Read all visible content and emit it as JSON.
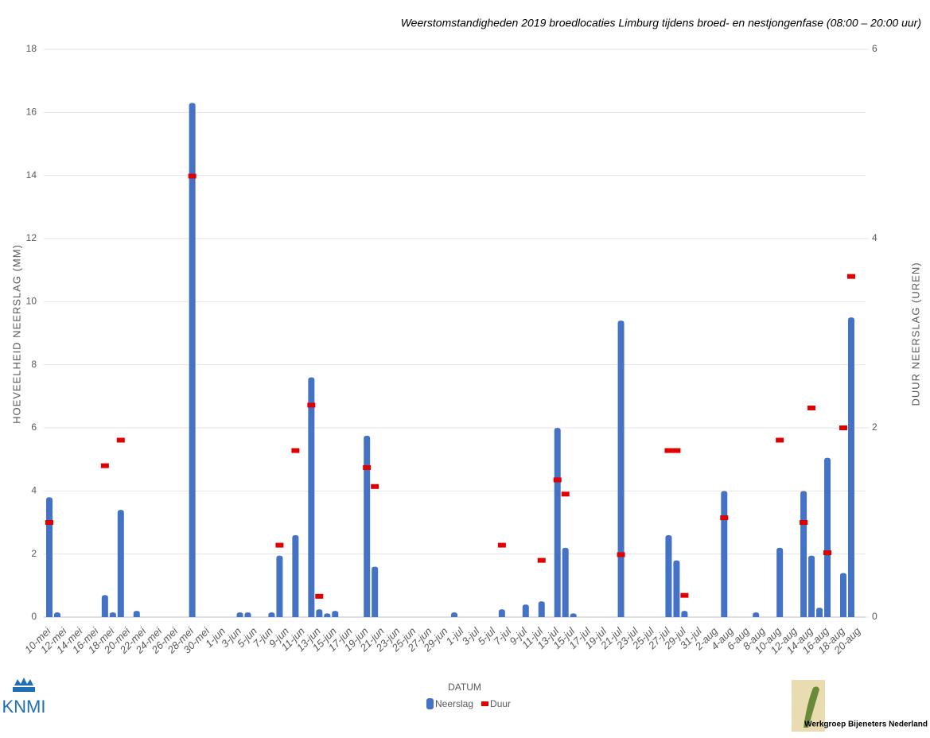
{
  "chart_data": {
    "type": "bar",
    "title": "Weerstomstandigheden 2019 broedlocaties Limburg tijdens broed- en nestjongenfase (08:00 – 20:00 uur)",
    "x_label": "DATUM",
    "y_label": "HOEVEELHEID NEERSLAG (MM)",
    "y2_label": "DUUR NEERSLAG (UREN)",
    "categories": [
      "10-mei",
      null,
      "12-mei",
      null,
      "14-mei",
      null,
      "16-mei",
      null,
      "18-mei",
      null,
      "20-mei",
      null,
      "22-mei",
      null,
      "24-mei",
      null,
      "26-mei",
      null,
      "28-mei",
      null,
      "30-mei",
      null,
      "1-jun",
      null,
      "3-jun",
      null,
      "5-jun",
      null,
      "7-jun",
      null,
      "9-jun",
      null,
      "11-jun",
      null,
      "13-jun",
      null,
      "15-jun",
      null,
      "17-jun",
      null,
      "19-jun",
      null,
      "21-jun",
      null,
      "23-jun",
      null,
      "25-jun",
      null,
      "27-jun",
      null,
      "29-jun",
      null,
      "1-jul",
      null,
      "3-jul",
      null,
      "5-jul",
      null,
      "7-jul",
      null,
      "9-jul",
      null,
      "11-jul",
      null,
      "13-jul",
      null,
      "15-jul",
      null,
      "17-jul",
      null,
      "19-jul",
      null,
      "21-jul",
      null,
      "23-jul",
      null,
      "25-jul",
      null,
      "27-jul",
      null,
      "29-jul",
      null,
      "31-jul",
      null,
      "2-aug",
      null,
      "4-aug",
      null,
      "6-aug",
      null,
      "8-aug",
      null,
      "10-aug",
      null,
      "12-aug",
      null,
      "14-aug",
      null,
      "16-aug",
      null,
      "18-aug",
      null,
      "20-aug"
    ],
    "series": [
      {
        "name": "Neerslag",
        "color": "#4472c4",
        "type": "bar",
        "values": [
          3.8,
          0.15,
          null,
          null,
          null,
          null,
          null,
          0.7,
          0.15,
          3.4,
          null,
          0.2,
          null,
          null,
          null,
          null,
          null,
          null,
          16.3,
          null,
          null,
          null,
          null,
          null,
          0.15,
          0.15,
          null,
          null,
          0.15,
          1.95,
          null,
          2.6,
          null,
          7.6,
          0.25,
          0.12,
          0.2,
          null,
          null,
          null,
          5.75,
          1.6,
          null,
          null,
          null,
          null,
          null,
          null,
          null,
          null,
          null,
          0.15,
          null,
          null,
          null,
          null,
          null,
          0.25,
          null,
          null,
          0.4,
          null,
          0.5,
          null,
          6.0,
          2.2,
          0.12,
          null,
          null,
          null,
          null,
          null,
          9.4,
          null,
          null,
          null,
          null,
          null,
          2.6,
          1.8,
          0.2,
          null,
          null,
          null,
          null,
          4.0,
          null,
          null,
          null,
          0.15,
          null,
          null,
          2.2,
          null,
          null,
          4.0,
          1.95,
          0.3,
          5.05,
          null,
          1.4,
          9.5,
          null
        ]
      },
      {
        "name": "Duur",
        "color": "#e00000",
        "type": "dash",
        "axis": "y2",
        "values": [
          1.0,
          null,
          null,
          null,
          null,
          null,
          null,
          1.6,
          null,
          1.87,
          null,
          null,
          null,
          null,
          null,
          null,
          null,
          null,
          4.66,
          null,
          null,
          null,
          null,
          null,
          null,
          null,
          null,
          null,
          null,
          0.76,
          null,
          1.76,
          null,
          2.24,
          0.22,
          null,
          null,
          null,
          null,
          null,
          1.58,
          1.38,
          null,
          null,
          null,
          null,
          null,
          null,
          null,
          null,
          null,
          null,
          null,
          null,
          null,
          null,
          null,
          0.76,
          null,
          null,
          null,
          null,
          0.6,
          null,
          1.45,
          1.3,
          null,
          null,
          null,
          null,
          null,
          null,
          0.66,
          null,
          null,
          null,
          null,
          null,
          1.76,
          1.76,
          0.23,
          null,
          null,
          null,
          null,
          1.05,
          null,
          null,
          null,
          null,
          null,
          null,
          1.87,
          null,
          null,
          1.0,
          2.21,
          null,
          0.68,
          null,
          2.0,
          3.6,
          null
        ]
      }
    ],
    "ylim": [
      0,
      18
    ],
    "yticks": [
      0,
      2,
      4,
      6,
      8,
      10,
      12,
      14,
      16,
      18
    ],
    "y2lim": [
      0,
      6
    ],
    "y2ticks": [
      0,
      2,
      4,
      6
    ],
    "grid": true
  },
  "footer": {
    "left_logo": "KNMI",
    "right_logo": "Werkgroep Bijeneters Nederland"
  }
}
